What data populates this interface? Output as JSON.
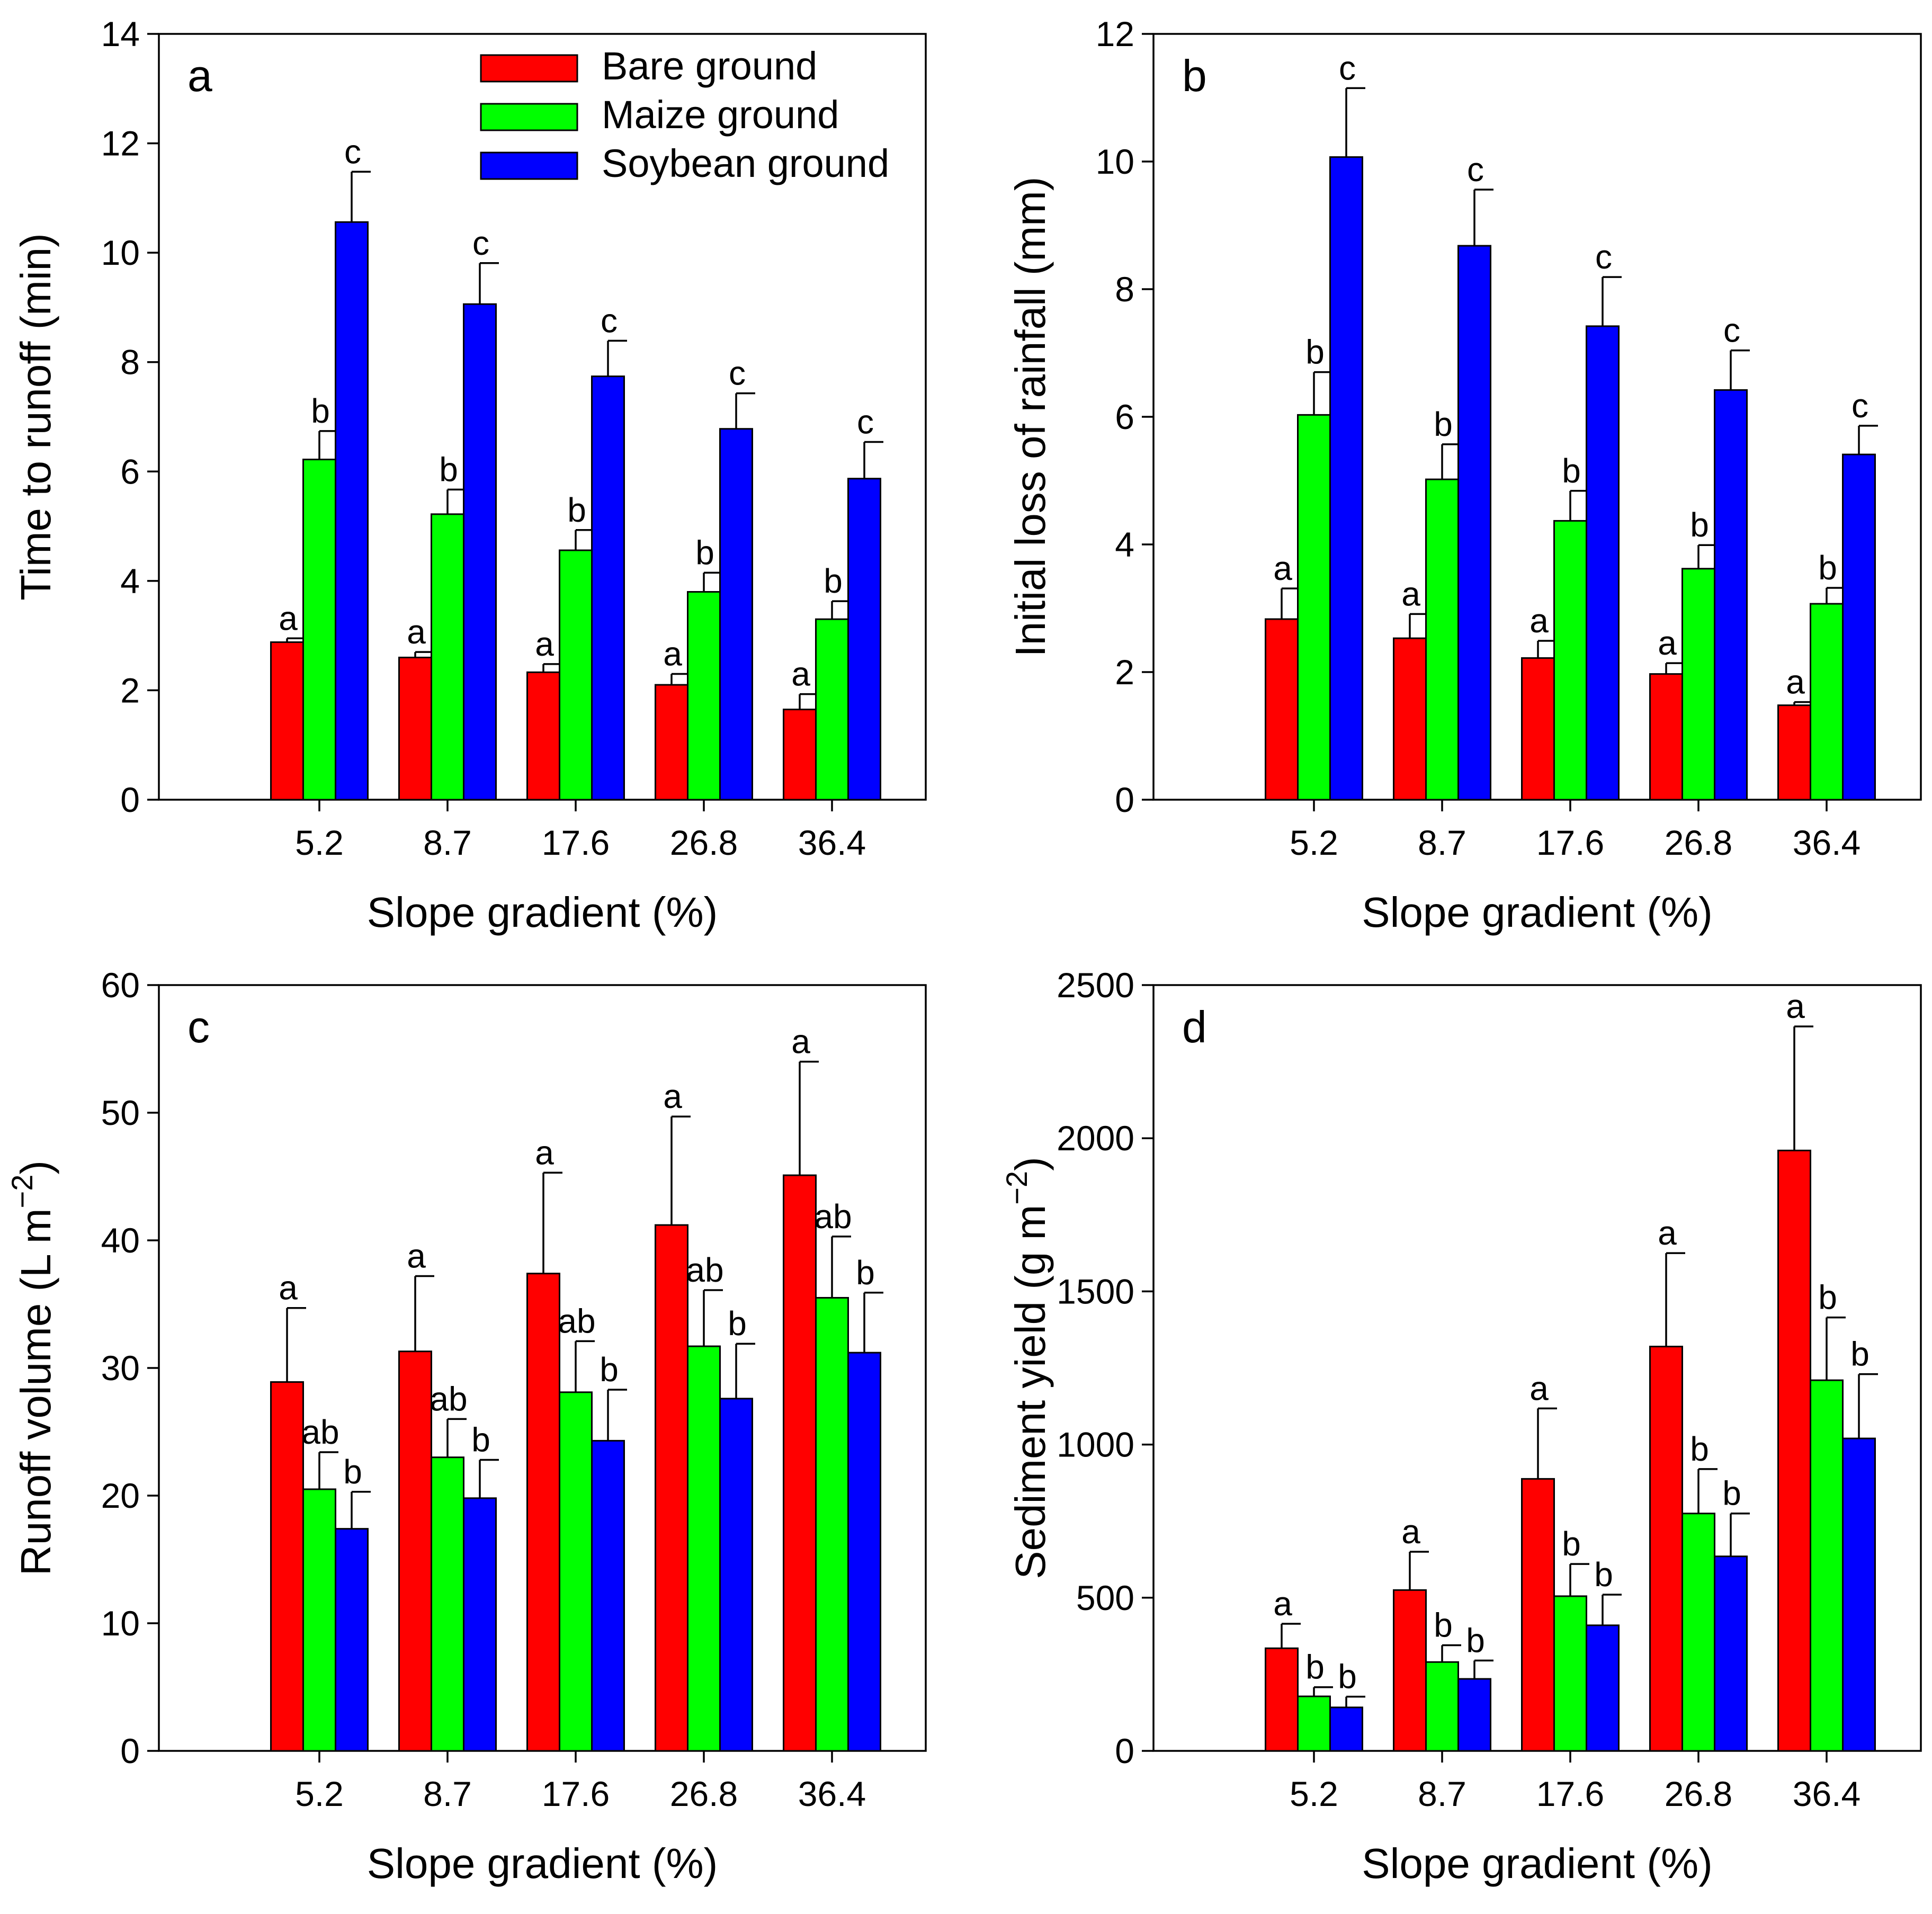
{
  "colors": {
    "bare": "#ff0000",
    "maize": "#00ff00",
    "soybean": "#0000ff"
  },
  "legend": [
    {
      "series_index": 0,
      "label": "Bare ground"
    },
    {
      "series_index": 1,
      "label": "Maize ground"
    },
    {
      "series_index": 2,
      "label": "Soybean ground"
    }
  ],
  "chart_data": [
    {
      "id": "a",
      "type": "bar",
      "panel_letter": "a",
      "xlabel": "Slope gradient (%)",
      "ylabel": "Time to runoff (min)",
      "ylim": [
        0,
        14
      ],
      "yticks": [
        0,
        2,
        4,
        6,
        8,
        10,
        12,
        14
      ],
      "categories": [
        "5.2",
        "8.7",
        "17.6",
        "26.8",
        "36.4"
      ],
      "series": [
        {
          "name": "Bare ground",
          "values": [
            2.88,
            2.6,
            2.33,
            2.1,
            1.65
          ],
          "errors": [
            0.07,
            0.1,
            0.15,
            0.2,
            0.28
          ],
          "letters": [
            "a",
            "a",
            "a",
            "a",
            "a"
          ]
        },
        {
          "name": "Maize ground",
          "values": [
            6.22,
            5.22,
            4.56,
            3.8,
            3.3
          ],
          "errors": [
            0.52,
            0.45,
            0.37,
            0.35,
            0.33
          ],
          "letters": [
            "b",
            "b",
            "b",
            "b",
            "b"
          ]
        },
        {
          "name": "Soybean ground",
          "values": [
            10.56,
            9.06,
            7.74,
            6.78,
            5.87
          ],
          "errors": [
            0.92,
            0.75,
            0.65,
            0.65,
            0.67
          ],
          "letters": [
            "c",
            "c",
            "c",
            "c",
            "c"
          ]
        }
      ]
    },
    {
      "id": "b",
      "type": "bar",
      "panel_letter": "b",
      "xlabel": "Slope gradient (%)",
      "ylabel": "Initial loss of rainfall (mm)",
      "ylim": [
        0,
        12
      ],
      "yticks": [
        0,
        2,
        4,
        6,
        8,
        10,
        12
      ],
      "categories": [
        "5.2",
        "8.7",
        "17.6",
        "26.8",
        "36.4"
      ],
      "series": [
        {
          "name": "Bare ground",
          "values": [
            2.83,
            2.53,
            2.22,
            1.97,
            1.48
          ],
          "errors": [
            0.48,
            0.38,
            0.27,
            0.17,
            0.05
          ],
          "letters": [
            "a",
            "a",
            "a",
            "a",
            "a"
          ]
        },
        {
          "name": "Maize ground",
          "values": [
            6.03,
            5.02,
            4.37,
            3.62,
            3.07
          ],
          "errors": [
            0.67,
            0.55,
            0.47,
            0.37,
            0.25
          ],
          "letters": [
            "b",
            "b",
            "b",
            "b",
            "b"
          ]
        },
        {
          "name": "Soybean ground",
          "values": [
            10.07,
            8.68,
            7.42,
            6.42,
            5.41
          ],
          "errors": [
            1.08,
            0.88,
            0.77,
            0.62,
            0.45
          ],
          "letters": [
            "c",
            "c",
            "c",
            "c",
            "c"
          ]
        }
      ]
    },
    {
      "id": "c",
      "type": "bar",
      "panel_letter": "c",
      "xlabel": "Slope gradient (%)",
      "ylabel_main": "Runoff volume (L m",
      "ylabel_sup": "−2",
      "ylabel_end": ")",
      "ylim": [
        0,
        60
      ],
      "yticks": [
        0,
        10,
        20,
        30,
        40,
        50,
        60
      ],
      "categories": [
        "5.2",
        "8.7",
        "17.6",
        "26.8",
        "36.4"
      ],
      "series": [
        {
          "name": "Bare ground",
          "values": [
            28.9,
            31.3,
            37.4,
            41.2,
            45.1
          ],
          "errors": [
            5.8,
            5.9,
            7.9,
            8.5,
            8.9
          ],
          "letters": [
            "a",
            "a",
            "a",
            "a",
            "a"
          ]
        },
        {
          "name": "Maize ground",
          "values": [
            20.5,
            23.0,
            28.1,
            31.7,
            35.5
          ],
          "errors": [
            2.9,
            3.0,
            4.0,
            4.4,
            4.8
          ],
          "letters": [
            "ab",
            "ab",
            "ab",
            "ab",
            "ab"
          ]
        },
        {
          "name": "Soybean ground",
          "values": [
            17.4,
            19.8,
            24.3,
            27.6,
            31.2
          ],
          "errors": [
            2.9,
            3.0,
            4.0,
            4.3,
            4.7
          ],
          "letters": [
            "b",
            "b",
            "b",
            "b",
            "b"
          ]
        }
      ]
    },
    {
      "id": "d",
      "type": "bar",
      "panel_letter": "d",
      "xlabel": "Slope gradient (%)",
      "ylabel_main": "Sediment yield (g m",
      "ylabel_sup": "−2",
      "ylabel_end": ")",
      "ylim": [
        0,
        2500
      ],
      "yticks": [
        0,
        500,
        1000,
        1500,
        2000,
        2500
      ],
      "categories": [
        "5.2",
        "8.7",
        "17.6",
        "26.8",
        "36.4"
      ],
      "series": [
        {
          "name": "Bare ground",
          "values": [
            335,
            525,
            888,
            1320,
            1960
          ],
          "errors": [
            80,
            125,
            230,
            305,
            405
          ],
          "letters": [
            "a",
            "a",
            "a",
            "a",
            "a"
          ]
        },
        {
          "name": "Maize ground",
          "values": [
            178,
            290,
            505,
            775,
            1210
          ],
          "errors": [
            30,
            55,
            105,
            145,
            205
          ],
          "letters": [
            "b",
            "b",
            "b",
            "b",
            "b"
          ]
        },
        {
          "name": "Soybean ground",
          "values": [
            142,
            235,
            410,
            635,
            1020
          ],
          "errors": [
            35,
            60,
            100,
            140,
            210
          ],
          "letters": [
            "b",
            "b",
            "b",
            "b",
            "b"
          ]
        }
      ]
    }
  ]
}
